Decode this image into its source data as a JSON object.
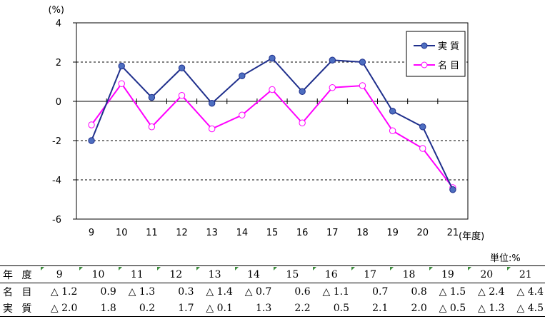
{
  "chart_data": {
    "type": "line",
    "y_unit": "(%)",
    "x_unit": "(年度)",
    "categories": [
      "9",
      "10",
      "11",
      "12",
      "13",
      "14",
      "15",
      "16",
      "17",
      "18",
      "19",
      "20",
      "21"
    ],
    "ylim": [
      -6,
      4
    ],
    "yticks": [
      "4",
      "2",
      "0",
      "-2",
      "-4",
      "-6"
    ],
    "grid": true,
    "legend_position": "top-right",
    "series": [
      {
        "name": "実 質",
        "color": "#1f2f8c",
        "marker_fill": "#4d6ec0",
        "marker": "filled-circle",
        "values": [
          -2.0,
          1.8,
          0.2,
          1.7,
          -0.1,
          1.3,
          2.2,
          0.5,
          2.1,
          2.0,
          -0.5,
          -1.3,
          -4.5
        ]
      },
      {
        "name": "名 目",
        "color": "#ff00ff",
        "marker_fill": "#ffffff",
        "marker": "hollow-circle",
        "values": [
          -1.2,
          0.9,
          -1.3,
          0.3,
          -1.4,
          -0.7,
          0.6,
          -1.1,
          0.7,
          0.8,
          -1.5,
          -2.4,
          -4.4
        ]
      }
    ]
  },
  "table": {
    "unit_note": "単位:%",
    "header_label": "年 度",
    "years": [
      "9",
      "10",
      "11",
      "12",
      "13",
      "14",
      "15",
      "16",
      "17",
      "18",
      "19",
      "20",
      "21"
    ],
    "rows": [
      {
        "label": "名 目",
        "cells": [
          "△ 1.2",
          "0.9",
          "△ 1.3",
          "0.3",
          "△ 1.4",
          "△ 0.7",
          "0.6",
          "△ 1.1",
          "0.7",
          "0.8",
          "△ 1.5",
          "△ 2.4",
          "△ 4.4"
        ]
      },
      {
        "label": "実 質",
        "cells": [
          "△ 2.0",
          "1.8",
          "0.2",
          "1.7",
          "△ 0.1",
          "1.3",
          "2.2",
          "0.5",
          "2.1",
          "2.0",
          "△ 0.5",
          "△ 1.3",
          "△ 4.5"
        ]
      }
    ]
  }
}
